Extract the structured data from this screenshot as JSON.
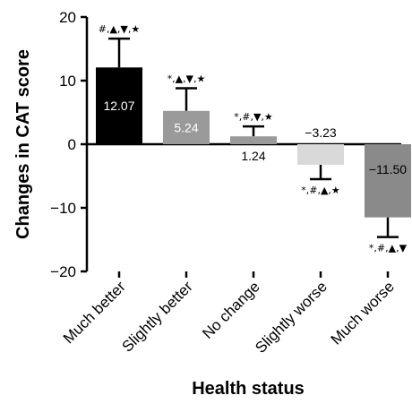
{
  "chart_data": {
    "type": "bar",
    "xlabel": "Health status",
    "ylabel": "Changes in CAT score",
    "ylim": [
      -20,
      20
    ],
    "yticks": [
      -20,
      -10,
      0,
      10,
      20
    ],
    "ytick_labels": [
      "−20",
      "−10",
      "0",
      "10",
      "20"
    ],
    "grid": false,
    "categories": [
      "Much better",
      "Slightly better",
      "No change",
      "Slightly worse",
      "Much worse"
    ],
    "values": [
      12.07,
      5.24,
      1.24,
      -3.23,
      -11.5
    ],
    "value_labels": [
      "12.07",
      "5.24",
      "1.24",
      "−3.23",
      "−11.50"
    ],
    "error_upper": [
      16.6,
      8.8,
      2.8,
      -5.5,
      -14.6
    ],
    "significance_labels": [
      "#,▲,▼,★",
      "*,▲,▼,★",
      "*,#,▼,★",
      "*,#,▲,★",
      "*,#,▲,▼"
    ],
    "bar_colors": [
      "#000000",
      "#9a9a9a",
      "#9a9a9a",
      "#d9d9d9",
      "#8a8a8a"
    ],
    "value_label_colors": [
      "#ffffff",
      "#ffffff",
      "#000000",
      "#000000",
      "#000000"
    ]
  }
}
